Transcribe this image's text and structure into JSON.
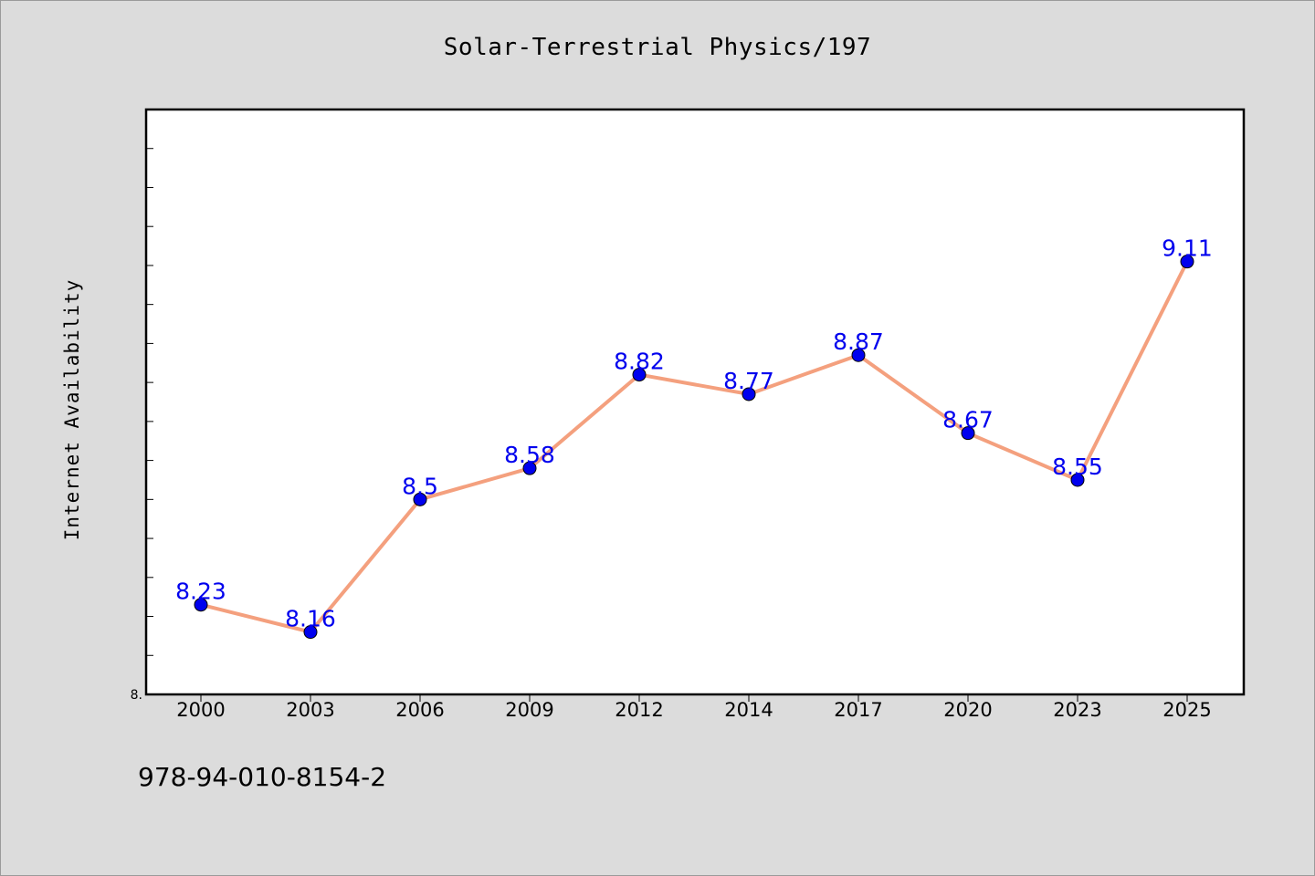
{
  "chart_data": {
    "type": "line",
    "title": "Solar-Terrestrial Physics/197",
    "xlabel": "",
    "ylabel": "Internet Availability",
    "categories": [
      "2000",
      "2003",
      "2006",
      "2009",
      "2012",
      "2014",
      "2017",
      "2020",
      "2023",
      "2025"
    ],
    "series": [
      {
        "values": [
          8.23,
          8.16,
          8.5,
          8.58,
          8.82,
          8.77,
          8.87,
          8.67,
          8.55,
          9.11
        ],
        "data_labels": [
          "8.23",
          "8.16",
          "8.5",
          "8.58",
          "8.82",
          "8.77",
          "8.87",
          "8.67",
          "8.55",
          "9.11"
        ],
        "line_color": "#f4a07e",
        "marker_color": "#0000ee",
        "label_color": "#0000ee"
      }
    ],
    "ylim": [
      8.0,
      9.5
    ],
    "y_tick_step": 0.1,
    "y_tick_labels": [
      {
        "value": 8.0,
        "label": "8."
      }
    ],
    "grid": false,
    "legend": "none"
  },
  "footnote": "978-94-010-8154-2",
  "colors": {
    "background": "#dcdcdc",
    "plot_background": "#ffffff",
    "axis": "#000000"
  }
}
